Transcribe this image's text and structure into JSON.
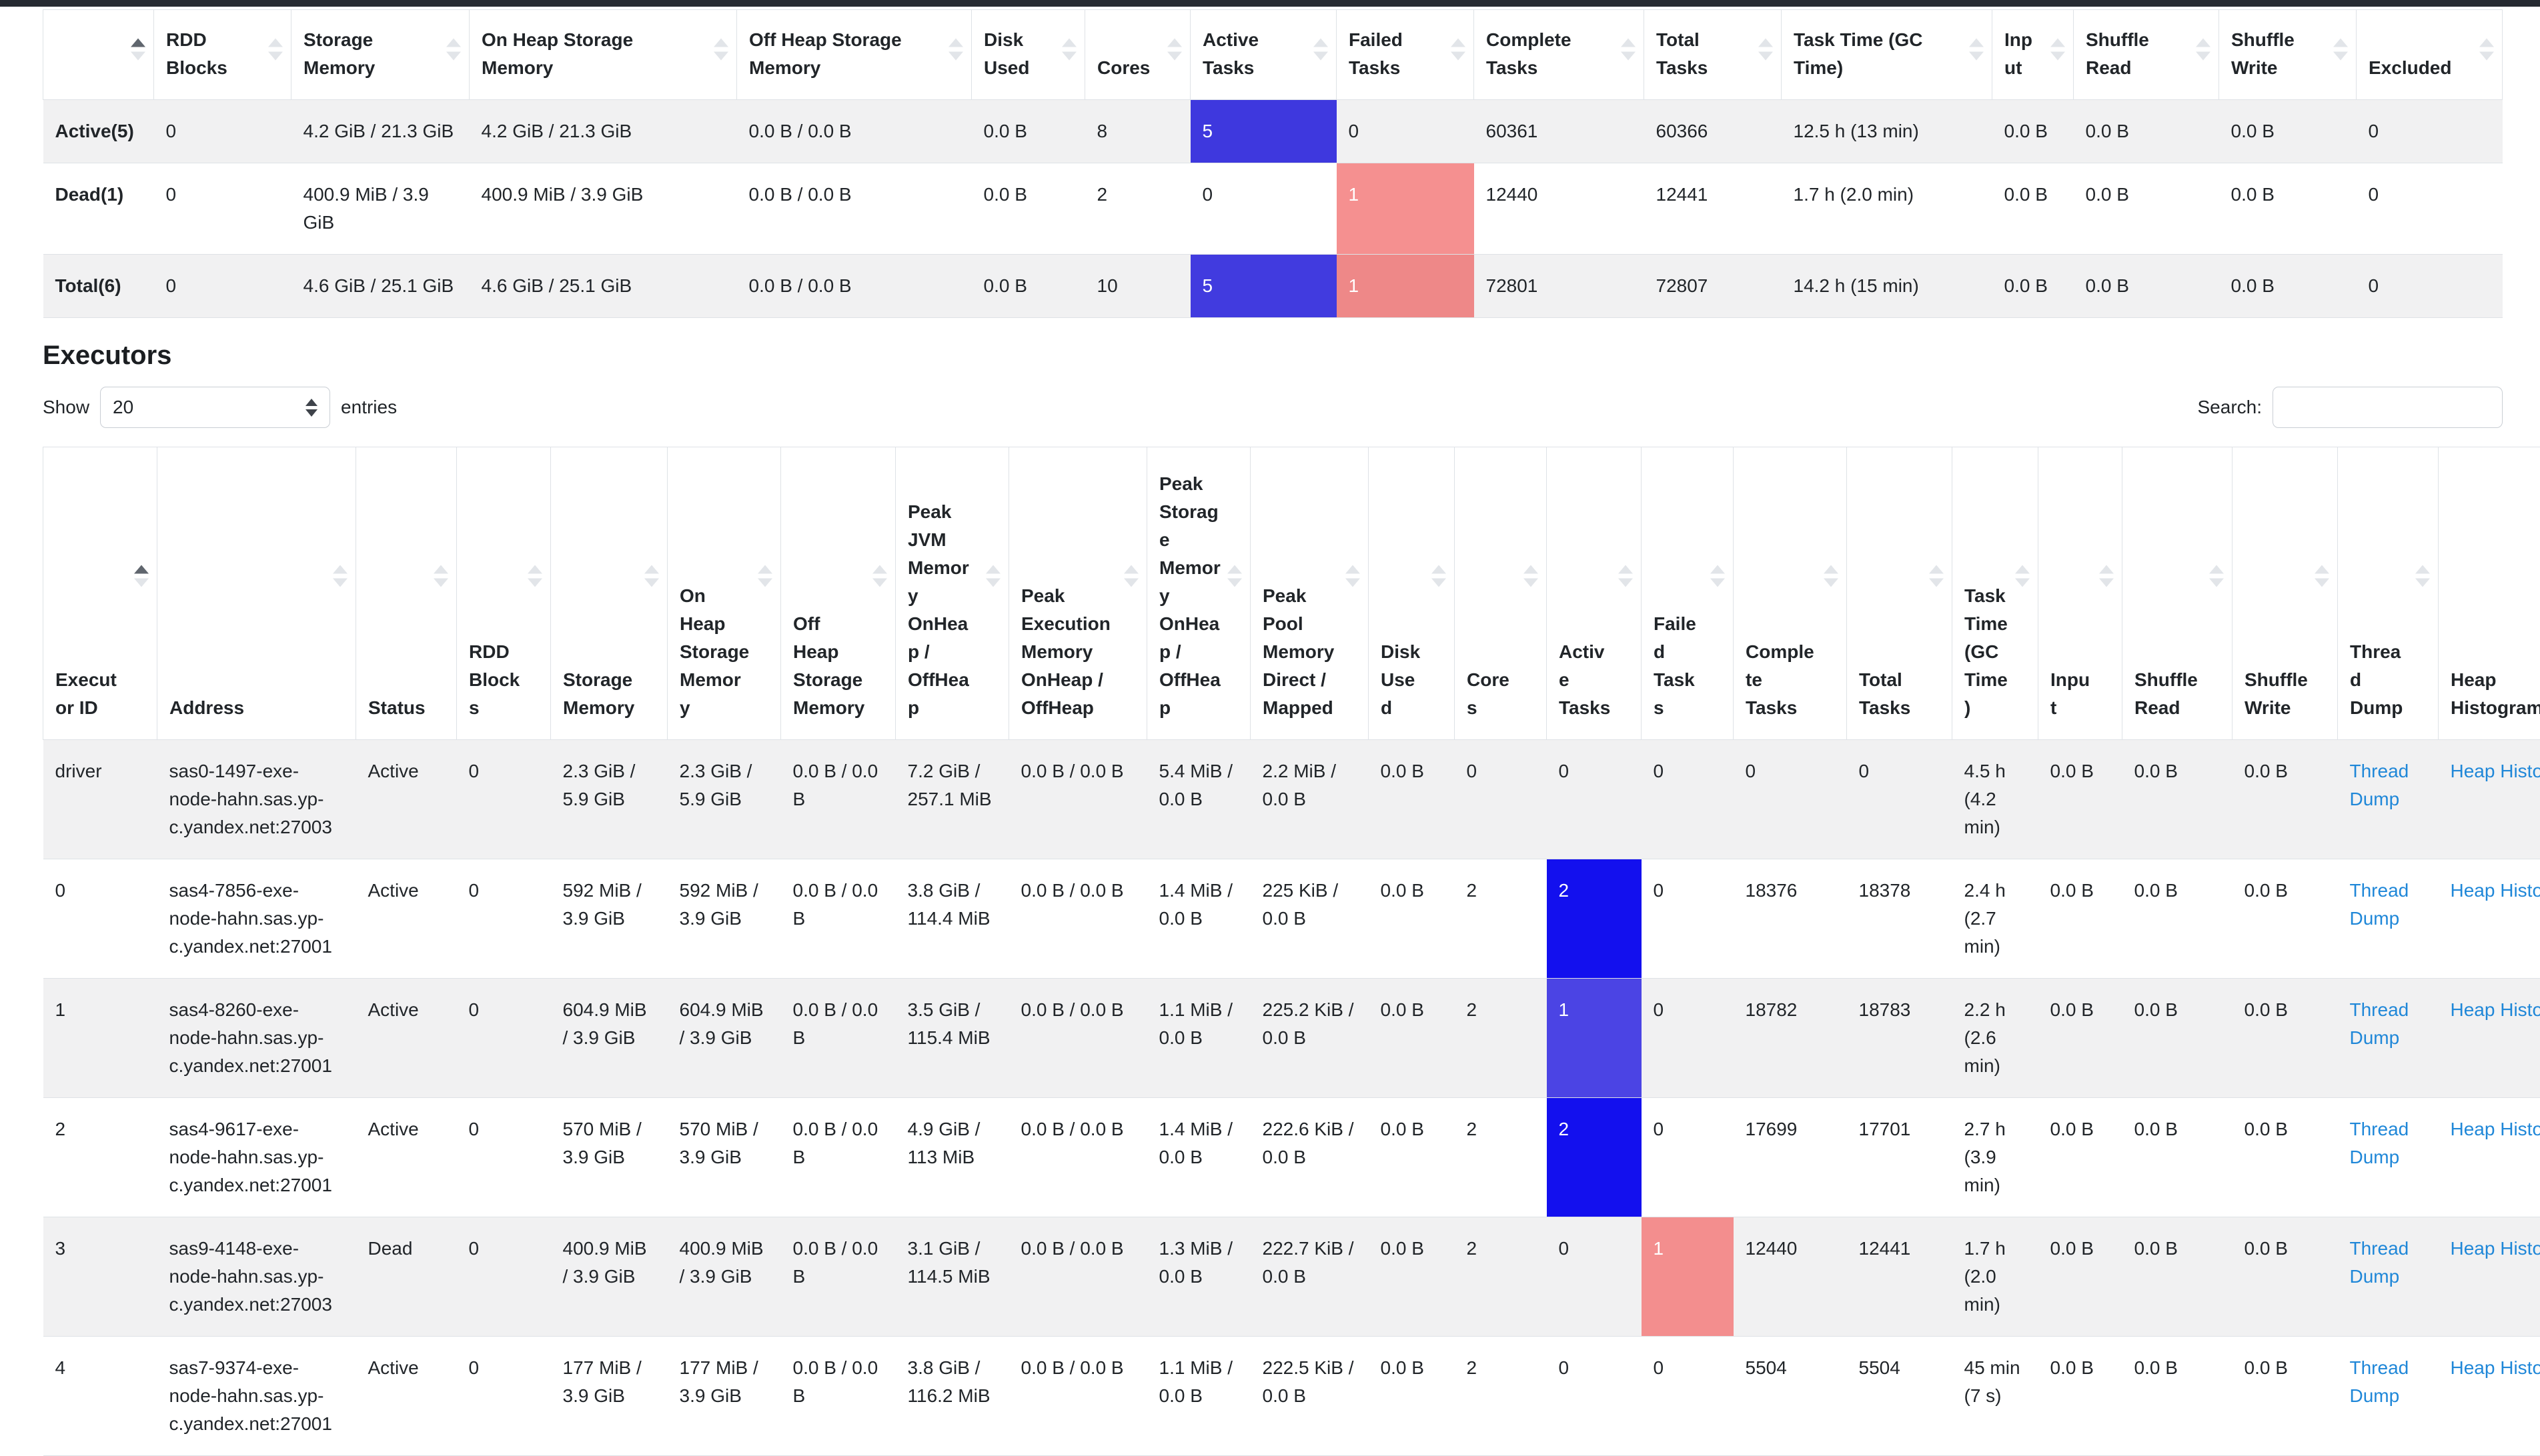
{
  "section": {
    "heading": "Executors"
  },
  "controls": {
    "show_label": "Show",
    "page_size": "20",
    "entries_label": "entries",
    "search_label": "Search:",
    "search_value": ""
  },
  "colors": {
    "link_blue": "#1f87d8",
    "active_tasks_blue_summary": "#3e38de",
    "active_tasks_blue_full": "#1310ee",
    "active_tasks_blue_partial": "#4b44e4",
    "failed_tasks_red": "#f38e8e",
    "row_stripe": "#f1f1f2",
    "table_border": "#dee2e6",
    "top_bar": "#262a31"
  },
  "summary_table": {
    "columns": [
      {
        "label": "",
        "sorted": "asc"
      },
      {
        "label": "RDD Blocks"
      },
      {
        "label": "Storage Memory"
      },
      {
        "label": "On Heap Storage Memory"
      },
      {
        "label": "Off Heap Storage Memory"
      },
      {
        "label": "Disk Used"
      },
      {
        "label": "Cores"
      },
      {
        "label": "Active Tasks"
      },
      {
        "label": "Failed Tasks"
      },
      {
        "label": "Complete Tasks"
      },
      {
        "label": "Total Tasks"
      },
      {
        "label": "Task Time (GC Time)"
      },
      {
        "label": "Input"
      },
      {
        "label": "Shuffle Read"
      },
      {
        "label": "Shuffle Write"
      },
      {
        "label": "Excluded"
      }
    ],
    "rows": [
      {
        "cells": [
          {
            "text": "Active(5)",
            "bold": true
          },
          "0",
          "4.2 GiB / 21.3 GiB",
          "4.2 GiB / 21.3 GiB",
          "0.0 B / 0.0 B",
          "0.0 B",
          "8",
          {
            "text": "5",
            "bg": "#3e38de",
            "fg": "#ffffff"
          },
          "0",
          "60361",
          "60366",
          "12.5 h (13 min)",
          "0.0 B",
          "0.0 B",
          "0.0 B",
          "0"
        ]
      },
      {
        "cells": [
          {
            "text": "Dead(1)",
            "bold": true
          },
          "0",
          "400.9 MiB / 3.9 GiB",
          "400.9 MiB / 3.9 GiB",
          "0.0 B / 0.0 B",
          "0.0 B",
          "2",
          "0",
          {
            "text": "1",
            "bg": "#f59090",
            "fg": "#ffffff"
          },
          "12440",
          "12441",
          "1.7 h (2.0 min)",
          "0.0 B",
          "0.0 B",
          "0.0 B",
          "0"
        ]
      },
      {
        "cells": [
          {
            "text": "Total(6)",
            "bold": true
          },
          "0",
          "4.6 GiB / 25.1 GiB",
          "4.6 GiB / 25.1 GiB",
          "0.0 B / 0.0 B",
          "0.0 B",
          "10",
          {
            "text": "5",
            "bg": "#413bdf",
            "fg": "#ffffff"
          },
          {
            "text": "1",
            "bg": "#ee8888",
            "fg": "#ffffff"
          },
          "72801",
          "72807",
          "14.2 h (15 min)",
          "0.0 B",
          "0.0 B",
          "0.0 B",
          "0"
        ]
      }
    ]
  },
  "executors_table": {
    "columns": [
      {
        "label": "Executor ID",
        "sorted": "asc"
      },
      {
        "label": "Address"
      },
      {
        "label": "Status"
      },
      {
        "label": "RDD Blocks"
      },
      {
        "label": "Storage Memory"
      },
      {
        "label": "On Heap Storage Memory"
      },
      {
        "label": "Off Heap Storage Memory"
      },
      {
        "label": "Peak JVM Memory OnHeap / OffHeap"
      },
      {
        "label": "Peak Execution Memory OnHeap / OffHeap"
      },
      {
        "label": "Peak Storage Memory OnHeap / OffHeap"
      },
      {
        "label": "Peak Pool Memory Direct / Mapped"
      },
      {
        "label": "Disk Used"
      },
      {
        "label": "Cores"
      },
      {
        "label": "Active Tasks"
      },
      {
        "label": "Failed Tasks"
      },
      {
        "label": "Complete Tasks"
      },
      {
        "label": "Total Tasks"
      },
      {
        "label": "Task Time (GC Time)"
      },
      {
        "label": "Input"
      },
      {
        "label": "Shuffle Read"
      },
      {
        "label": "Shuffle Write"
      },
      {
        "label": "Thread Dump"
      },
      {
        "label": "Heap Histogram",
        "arrows": false
      }
    ],
    "rows": [
      {
        "cells": [
          "driver",
          "sas0-1497-exe-node-hahn.sas.yp-c.yandex.net:27003",
          "Active",
          "0",
          "2.3 GiB / 5.9 GiB",
          "2.3 GiB / 5.9 GiB",
          "0.0 B / 0.0 B",
          "7.2 GiB / 257.1 MiB",
          "0.0 B / 0.0 B",
          "5.4 MiB / 0.0 B",
          "2.2 MiB / 0.0 B",
          "0.0 B",
          "0",
          "0",
          "0",
          "0",
          "0",
          "4.5 h (4.2 min)",
          "0.0 B",
          "0.0 B",
          "0.0 B",
          {
            "text": "Thread Dump",
            "link": true,
            "name": "thread-dump-link"
          },
          {
            "text": "Heap Histogram",
            "link": true,
            "name": "heap-histogram-link"
          }
        ]
      },
      {
        "cells": [
          "0",
          "sas4-7856-exe-node-hahn.sas.yp-c.yandex.net:27001",
          "Active",
          "0",
          "592 MiB / 3.9 GiB",
          "592 MiB / 3.9 GiB",
          "0.0 B / 0.0 B",
          "3.8 GiB / 114.4 MiB",
          "0.0 B / 0.0 B",
          "1.4 MiB / 0.0 B",
          "225 KiB / 0.0 B",
          "0.0 B",
          "2",
          {
            "text": "2",
            "bg": "#1310ee",
            "fg": "#ffffff"
          },
          "0",
          "18376",
          "18378",
          "2.4 h (2.7 min)",
          "0.0 B",
          "0.0 B",
          "0.0 B",
          {
            "text": "Thread Dump",
            "link": true,
            "name": "thread-dump-link"
          },
          {
            "text": "Heap Histogram",
            "link": true,
            "name": "heap-histogram-link"
          }
        ]
      },
      {
        "cells": [
          "1",
          "sas4-8260-exe-node-hahn.sas.yp-c.yandex.net:27001",
          "Active",
          "0",
          "604.9 MiB / 3.9 GiB",
          "604.9 MiB / 3.9 GiB",
          "0.0 B / 0.0 B",
          "3.5 GiB / 115.4 MiB",
          "0.0 B / 0.0 B",
          "1.1 MiB / 0.0 B",
          "225.2 KiB / 0.0 B",
          "0.0 B",
          "2",
          {
            "text": "1",
            "bg": "#4b44e4",
            "fg": "#ffffff"
          },
          "0",
          "18782",
          "18783",
          "2.2 h (2.6 min)",
          "0.0 B",
          "0.0 B",
          "0.0 B",
          {
            "text": "Thread Dump",
            "link": true,
            "name": "thread-dump-link"
          },
          {
            "text": "Heap Histogram",
            "link": true,
            "name": "heap-histogram-link"
          }
        ]
      },
      {
        "cells": [
          "2",
          "sas4-9617-exe-node-hahn.sas.yp-c.yandex.net:27001",
          "Active",
          "0",
          "570 MiB / 3.9 GiB",
          "570 MiB / 3.9 GiB",
          "0.0 B / 0.0 B",
          "4.9 GiB / 113 MiB",
          "0.0 B / 0.0 B",
          "1.4 MiB / 0.0 B",
          "222.6 KiB / 0.0 B",
          "0.0 B",
          "2",
          {
            "text": "2",
            "bg": "#1310ee",
            "fg": "#ffffff"
          },
          "0",
          "17699",
          "17701",
          "2.7 h (3.9 min)",
          "0.0 B",
          "0.0 B",
          "0.0 B",
          {
            "text": "Thread Dump",
            "link": true,
            "name": "thread-dump-link"
          },
          {
            "text": "Heap Histogram",
            "link": true,
            "name": "heap-histogram-link"
          }
        ]
      },
      {
        "cells": [
          "3",
          "sas9-4148-exe-node-hahn.sas.yp-c.yandex.net:27003",
          "Dead",
          "0",
          "400.9 MiB / 3.9 GiB",
          "400.9 MiB / 3.9 GiB",
          "0.0 B / 0.0 B",
          "3.1 GiB / 114.5 MiB",
          "0.0 B / 0.0 B",
          "1.3 MiB / 0.0 B",
          "222.7 KiB / 0.0 B",
          "0.0 B",
          "2",
          "0",
          {
            "text": "1",
            "bg": "#f38e8e",
            "fg": "#ffffff"
          },
          "12440",
          "12441",
          "1.7 h (2.0 min)",
          "0.0 B",
          "0.0 B",
          "0.0 B",
          {
            "text": "Thread Dump",
            "link": true,
            "name": "thread-dump-link"
          },
          {
            "text": "Heap Histogram",
            "link": true,
            "name": "heap-histogram-link"
          }
        ]
      },
      {
        "cells": [
          "4",
          "sas7-9374-exe-node-hahn.sas.yp-c.yandex.net:27001",
          "Active",
          "0",
          "177 MiB / 3.9 GiB",
          "177 MiB / 3.9 GiB",
          "0.0 B / 0.0 B",
          "3.8 GiB / 116.2 MiB",
          "0.0 B / 0.0 B",
          "1.1 MiB / 0.0 B",
          "222.5 KiB / 0.0 B",
          "0.0 B",
          "2",
          "0",
          "0",
          "5504",
          "5504",
          "45 min (7 s)",
          "0.0 B",
          "0.0 B",
          "0.0 B",
          {
            "text": "Thread Dump",
            "link": true,
            "name": "thread-dump-link"
          },
          {
            "text": "Heap Histogram",
            "link": true,
            "name": "heap-histogram-link"
          }
        ]
      }
    ]
  }
}
